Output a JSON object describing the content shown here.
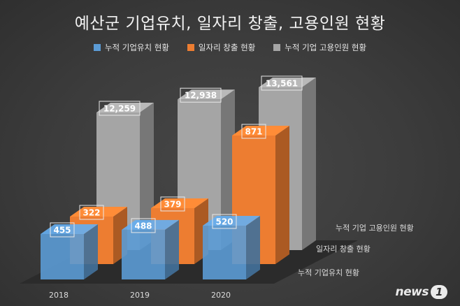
{
  "chart_data": {
    "type": "bar",
    "title": "예산군 기업유치, 일자리 창출, 고용인원 현황",
    "categories": [
      "2018",
      "2019",
      "2020"
    ],
    "series": [
      {
        "name": "누적 기업유치 현황",
        "values": [
          455,
          488,
          520
        ],
        "color": "#5b9bd5"
      },
      {
        "name": "일자리 창출 현황",
        "values": [
          322,
          379,
          871
        ],
        "color": "#ed7d31"
      },
      {
        "name": "누적 기업 고용인원 현황",
        "values": [
          12259,
          12938,
          13561
        ],
        "color": "#a5a5a5"
      }
    ],
    "value_labels": [
      [
        "455",
        "488",
        "520"
      ],
      [
        "322",
        "379",
        "871"
      ],
      [
        "12,259",
        "12,938",
        "13,561"
      ]
    ],
    "legend_position": "top",
    "grid": false,
    "style": "3d-clustered-column"
  },
  "watermark": {
    "text": "news",
    "mark": "1"
  }
}
